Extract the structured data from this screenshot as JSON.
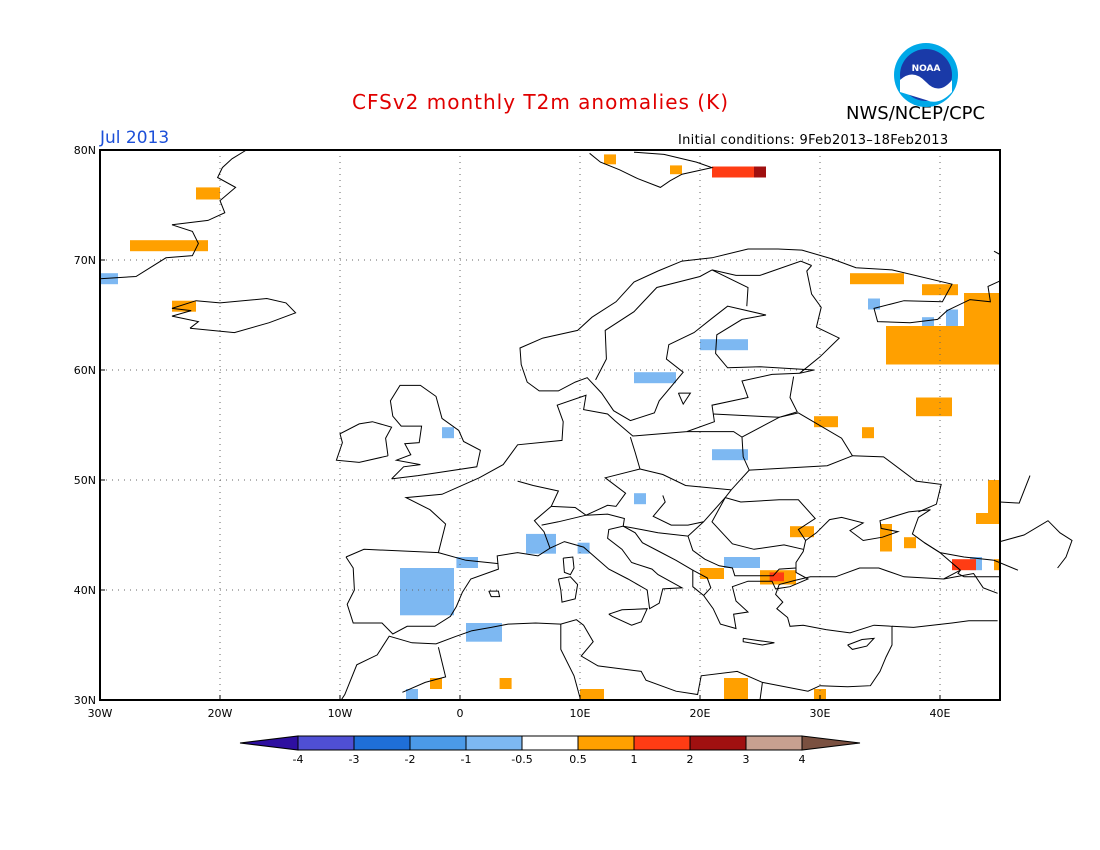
{
  "header": {
    "title": "CFSv2 monthly T2m anomalies (K)",
    "agency": "NWS/NCEP/CPC",
    "logo_text": "NOAA",
    "period": "Jul 2013",
    "initial_conditions": "Initial conditions: 9Feb2013–18Feb2013"
  },
  "map": {
    "projection": "lat-lon",
    "lon_range": [
      -30,
      45
    ],
    "lat_range": [
      30,
      80
    ],
    "grid": "dotted",
    "lat_labels": [
      "30N",
      "40N",
      "50N",
      "60N",
      "70N",
      "80N"
    ],
    "lon_labels": [
      "30W",
      "20W",
      "10W",
      "0",
      "10E",
      "20E",
      "30E",
      "40E"
    ],
    "anomaly_regions": [
      {
        "name": "Svalbard west",
        "cat": "c1",
        "lon": [
          12,
          13
        ],
        "lat": [
          78.7,
          79.6
        ]
      },
      {
        "name": "Svalbard east",
        "cat": "c1",
        "lon": [
          17.5,
          18.5
        ],
        "lat": [
          77.8,
          78.6
        ]
      },
      {
        "name": "Franz Josef west",
        "cat": "c2",
        "lon": [
          21,
          24.5
        ],
        "lat": [
          77.5,
          78.5
        ]
      },
      {
        "name": "Franz Josef east",
        "cat": "c3",
        "lon": [
          24.5,
          25.5
        ],
        "lat": [
          77.5,
          78.5
        ]
      },
      {
        "name": "Greenland east 1",
        "cat": "c1",
        "lon": [
          -22,
          -20
        ],
        "lat": [
          75.5,
          76.6
        ]
      },
      {
        "name": "Greenland east 2",
        "cat": "c1",
        "lon": [
          -27.5,
          -21
        ],
        "lat": [
          70.8,
          71.8
        ]
      },
      {
        "name": "Greenland tip",
        "cat": "b1",
        "lon": [
          -30,
          -28.5
        ],
        "lat": [
          67.8,
          68.8
        ]
      },
      {
        "name": "Iceland NW",
        "cat": "c1",
        "lon": [
          -24,
          -22
        ],
        "lat": [
          65.3,
          66.3
        ]
      },
      {
        "name": "Kola 1",
        "cat": "c1",
        "lon": [
          32.5,
          37
        ],
        "lat": [
          67.8,
          68.8
        ]
      },
      {
        "name": "Kola 2",
        "cat": "c1",
        "lon": [
          38.5,
          41.5
        ],
        "lat": [
          66.8,
          67.8
        ]
      },
      {
        "name": "White Sea blue",
        "cat": "b1",
        "lon": [
          34,
          35
        ],
        "lat": [
          65.5,
          66.5
        ]
      },
      {
        "name": "Mezen blue 1",
        "cat": "b1",
        "lon": [
          38.5,
          39.5
        ],
        "lat": [
          63.8,
          64.8
        ]
      },
      {
        "name": "Mezen blue 2",
        "cat": "b1",
        "lon": [
          40.5,
          41.5
        ],
        "lat": [
          63.8,
          65.5
        ]
      },
      {
        "name": "NW Russia warm",
        "cat": "c1",
        "lon": [
          35.5,
          45
        ],
        "lat": [
          60.5,
          64
        ]
      },
      {
        "name": "Komi warm",
        "cat": "c1",
        "lon": [
          42,
          45
        ],
        "lat": [
          64,
          67
        ]
      },
      {
        "name": "Finland cool",
        "cat": "b1",
        "lon": [
          20,
          24
        ],
        "lat": [
          61.8,
          62.8
        ]
      },
      {
        "name": "Sweden cool",
        "cat": "b1",
        "lon": [
          14.5,
          18
        ],
        "lat": [
          58.8,
          59.8
        ]
      },
      {
        "name": "Volga warm",
        "cat": "c1",
        "lon": [
          38,
          41
        ],
        "lat": [
          55.8,
          57.5
        ]
      },
      {
        "name": "Moscow warm",
        "cat": "c1",
        "lon": [
          29.5,
          31.5
        ],
        "lat": [
          54.8,
          55.8
        ]
      },
      {
        "name": "Moscow warm 2",
        "cat": "c1",
        "lon": [
          33.5,
          34.5
        ],
        "lat": [
          53.8,
          54.8
        ]
      },
      {
        "name": "Belarus cool",
        "cat": "b1",
        "lon": [
          21,
          24
        ],
        "lat": [
          51.8,
          52.8
        ]
      },
      {
        "name": "UK cool",
        "cat": "b1",
        "lon": [
          -1.5,
          -0.5
        ],
        "lat": [
          53.8,
          54.8
        ]
      },
      {
        "name": "Austria cool",
        "cat": "b1",
        "lon": [
          14.5,
          15.5
        ],
        "lat": [
          47.8,
          48.8
        ]
      },
      {
        "name": "Carpathian warm",
        "cat": "c1",
        "lon": [
          27.5,
          29.5
        ],
        "lat": [
          44.8,
          45.8
        ]
      },
      {
        "name": "Crimea warm",
        "cat": "c1",
        "lon": [
          35,
          36
        ],
        "lat": [
          43.5,
          46
        ]
      },
      {
        "name": "Crimea warm 2",
        "cat": "c1",
        "lon": [
          37,
          38
        ],
        "lat": [
          43.8,
          44.8
        ]
      },
      {
        "name": "Caucasus warm",
        "cat": "c1",
        "lon": [
          44,
          45
        ],
        "lat": [
          46,
          50
        ]
      },
      {
        "name": "Caucasus warm 2",
        "cat": "c1",
        "lon": [
          43,
          44
        ],
        "lat": [
          46,
          47
        ]
      },
      {
        "name": "Georgia blue",
        "cat": "b1",
        "lon": [
          42.5,
          43.5
        ],
        "lat": [
          41.8,
          43
        ]
      },
      {
        "name": "Georgia hot",
        "cat": "c2",
        "lon": [
          41,
          43
        ],
        "lat": [
          41.8,
          42.8
        ]
      },
      {
        "name": "Georgia warm",
        "cat": "c1",
        "lon": [
          44.5,
          45
        ],
        "lat": [
          41.8,
          42.8
        ]
      },
      {
        "name": "France south cool",
        "cat": "b1",
        "lon": [
          5.5,
          8
        ],
        "lat": [
          43.3,
          45.1
        ]
      },
      {
        "name": "Corsica cool",
        "cat": "b1",
        "lon": [
          9.8,
          10.8
        ],
        "lat": [
          43.3,
          44.3
        ]
      },
      {
        "name": "Pyrenees cool",
        "cat": "b1",
        "lon": [
          -0.3,
          1.5
        ],
        "lat": [
          42,
          43
        ]
      },
      {
        "name": "Iberia cool",
        "cat": "b1",
        "lon": [
          -5,
          -0.5
        ],
        "lat": [
          37.7,
          42
        ]
      },
      {
        "name": "Bulgaria cool",
        "cat": "b1",
        "lon": [
          22,
          25
        ],
        "lat": [
          42,
          43
        ]
      },
      {
        "name": "Albania warm",
        "cat": "c1",
        "lon": [
          20,
          22
        ],
        "lat": [
          41,
          42
        ]
      },
      {
        "name": "Turkey warm",
        "cat": "c1",
        "lon": [
          25,
          28
        ],
        "lat": [
          40.5,
          41.8
        ]
      },
      {
        "name": "Thrace hot",
        "cat": "c2",
        "lon": [
          25.8,
          27
        ],
        "lat": [
          40.8,
          41.6
        ]
      },
      {
        "name": "Algeria cool",
        "cat": "b1",
        "lon": [
          0.5,
          3.5
        ],
        "lat": [
          35.3,
          37
        ]
      },
      {
        "name": "Morocco cool",
        "cat": "b1",
        "lon": [
          -4.5,
          -3.5
        ],
        "lat": [
          30,
          31
        ]
      },
      {
        "name": "Morocco warm",
        "cat": "c1",
        "lon": [
          -2.5,
          -1.5
        ],
        "lat": [
          31,
          32
        ]
      },
      {
        "name": "Algeria warm",
        "cat": "c1",
        "lon": [
          3.3,
          4.3
        ],
        "lat": [
          31,
          32
        ]
      },
      {
        "name": "Libya warm",
        "cat": "c1",
        "lon": [
          10,
          12
        ],
        "lat": [
          30,
          31
        ]
      },
      {
        "name": "Crete warm",
        "cat": "c1",
        "lon": [
          22,
          24
        ],
        "lat": [
          30,
          32
        ]
      },
      {
        "name": "Egypt warm",
        "cat": "c1",
        "lon": [
          29.5,
          30.5
        ],
        "lat": [
          30,
          31
        ]
      }
    ]
  },
  "colorbar": {
    "colors": {
      "b4": "#2e0fa0",
      "b3": "#4f4fd4",
      "b2": "#1f6fd8",
      "b1b": "#4b9ae8",
      "b1": "#7db8f2",
      "w": "#ffffff",
      "c1": "#ffa000",
      "c2": "#ff3c14",
      "c3": "#a01010",
      "c4": "#c8a090",
      "c5": "#7a5040"
    },
    "bins": [
      "b4",
      "b3",
      "b2",
      "b1b",
      "b1",
      "w",
      "c1",
      "c2",
      "c3",
      "c4",
      "c5"
    ],
    "labels": [
      "-4",
      "-3",
      "-2",
      "-1",
      "-0.5",
      "0.5",
      "1",
      "2",
      "3",
      "4"
    ]
  }
}
